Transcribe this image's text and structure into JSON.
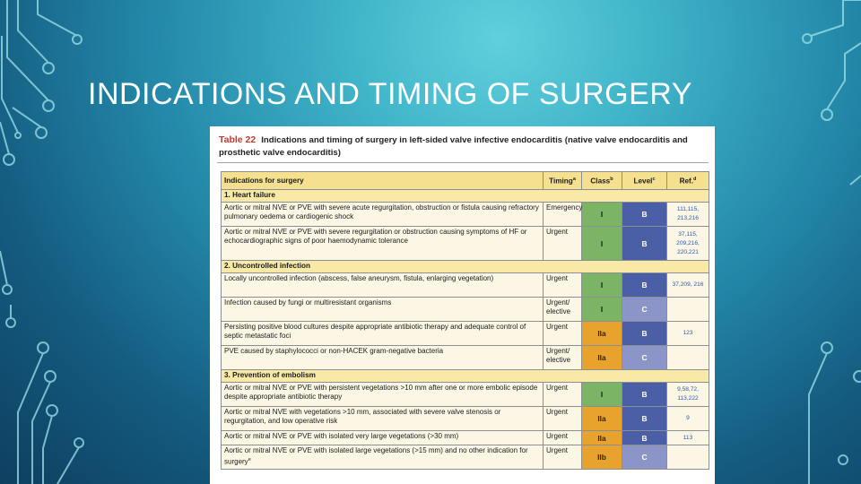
{
  "slide": {
    "title": "INDICATIONS AND TIMING OF SURGERY"
  },
  "colors": {
    "class_I": "#7cb466",
    "class_IIa": "#e7a32e",
    "class_IIb": "#e7a32e",
    "level_B": "#4a5fa6",
    "level_C": "#8b95c8",
    "header_bg": "#f4e08e"
  },
  "table": {
    "number": "Table 22",
    "caption": "Indications and timing of surgery in left-sided valve infective endocarditis (native valve endocarditis and prosthetic valve endocarditis)",
    "headers": {
      "indication": "Indications for surgery",
      "timing": "Timing",
      "timing_sup": "a",
      "class": "Class",
      "class_sup": "b",
      "level": "Level",
      "level_sup": "c",
      "ref": "Ref.",
      "ref_sup": "d"
    },
    "sections": [
      {
        "title": "1. Heart failure",
        "rows": [
          {
            "indication": "Aortic or mitral NVE or PVE with severe acute regurgitation, obstruction or fistula causing refractory pulmonary oedema or cardiogenic shock",
            "timing": "Emergency",
            "class": "I",
            "level": "B",
            "ref": "111,115, 213,216"
          },
          {
            "indication": "Aortic or mitral NVE or PVE with severe regurgitation or obstruction causing symptoms of HF or echocardiographic signs of poor haemodynamic tolerance",
            "timing": "Urgent",
            "class": "I",
            "level": "B",
            "ref": "37,115, 209,216, 220,221"
          }
        ]
      },
      {
        "title": "2. Uncontrolled infection",
        "rows": [
          {
            "indication": "Locally uncontrolled infection (abscess, false aneurysm, fistula, enlarging vegetation)",
            "timing": "Urgent",
            "class": "I",
            "level": "B",
            "ref": "37,209, 216"
          },
          {
            "indication": "Infection caused by fungi or multiresistant organisms",
            "timing": "Urgent/ elective",
            "class": "I",
            "level": "C",
            "ref": ""
          },
          {
            "indication": "Persisting positive blood cultures despite appropriate antibiotic therapy and adequate control of septic metastatic foci",
            "timing": "Urgent",
            "class": "IIa",
            "level": "B",
            "ref": "123"
          },
          {
            "indication": "PVE caused by staphylococci or non-HACEK gram-negative bacteria",
            "timing": "Urgent/ elective",
            "class": "IIa",
            "level": "C",
            "ref": ""
          }
        ]
      },
      {
        "title": "3. Prevention of embolism",
        "rows": [
          {
            "indication": "Aortic or mitral NVE or PVE with persistent vegetations >10 mm after one or more embolic episode despite appropriate antibiotic therapy",
            "timing": "Urgent",
            "class": "I",
            "level": "B",
            "ref": "9,58,72, 113,222"
          },
          {
            "indication": "Aortic or mitral NVE with vegetations >10 mm, associated with severe valve stenosis or regurgitation, and low operative risk",
            "timing": "Urgent",
            "class": "IIa",
            "level": "B",
            "ref": "9"
          },
          {
            "indication": "Aortic or mitral NVE or PVE with isolated very large vegetations (>30 mm)",
            "timing": "Urgent",
            "class": "IIa",
            "level": "B",
            "ref": "113"
          },
          {
            "indication": "Aortic or mitral NVE or PVE with isolated large vegetations (>15 mm) and no other indication for surgery",
            "indication_sup": "e",
            "timing": "Urgent",
            "class": "IIb",
            "level": "C",
            "ref": ""
          }
        ]
      }
    ]
  }
}
